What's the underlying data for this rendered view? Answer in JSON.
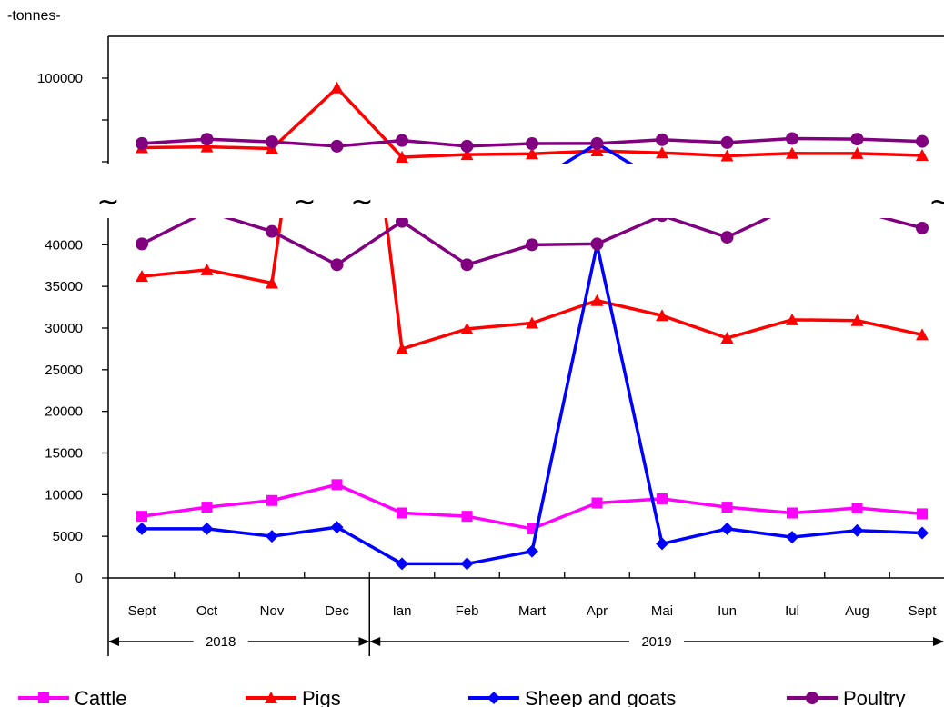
{
  "chart_data": {
    "type": "line",
    "unit_label": "-tonnes-",
    "categories": [
      "Sept",
      "Oct",
      "Nov",
      "Dec",
      "Ian",
      "Feb",
      "Mart",
      "Apr",
      "Mai",
      "Iun",
      "Iul",
      "Aug",
      "Sept"
    ],
    "year_groups": [
      {
        "label": "2018",
        "start": 0,
        "end": 3
      },
      {
        "label": "2019",
        "start": 4,
        "end": 12
      }
    ],
    "y_ticks": [
      0,
      5000,
      10000,
      15000,
      20000,
      25000,
      30000,
      35000,
      40000
    ],
    "y_ticks_upper": [
      100000
    ],
    "axis_break": "~",
    "series": [
      {
        "name": "Cattle",
        "color": "#ff00ff",
        "marker": "square",
        "values": [
          7400,
          8500,
          9300,
          11200,
          7800,
          7400,
          5900,
          9000,
          9500,
          8500,
          7800,
          8400,
          7700
        ]
      },
      {
        "name": "Pigs",
        "color": "#ff0000",
        "marker": "triangle",
        "values": [
          36200,
          37000,
          35400,
          91000,
          27500,
          29900,
          30600,
          33300,
          31500,
          28800,
          31000,
          30900,
          29200
        ]
      },
      {
        "name": "Sheep and goats",
        "color": "#0000ff",
        "marker": "diamond",
        "values": [
          5900,
          5900,
          5000,
          6100,
          1700,
          1700,
          3200,
          40000,
          4100,
          5900,
          4900,
          5700,
          5400
        ]
      },
      {
        "name": "Poultry",
        "color": "#800080",
        "marker": "circle",
        "values": [
          40100,
          44000,
          41600,
          37600,
          42800,
          37600,
          40000,
          40100,
          43500,
          40900,
          44600,
          44100,
          42000
        ]
      }
    ]
  }
}
